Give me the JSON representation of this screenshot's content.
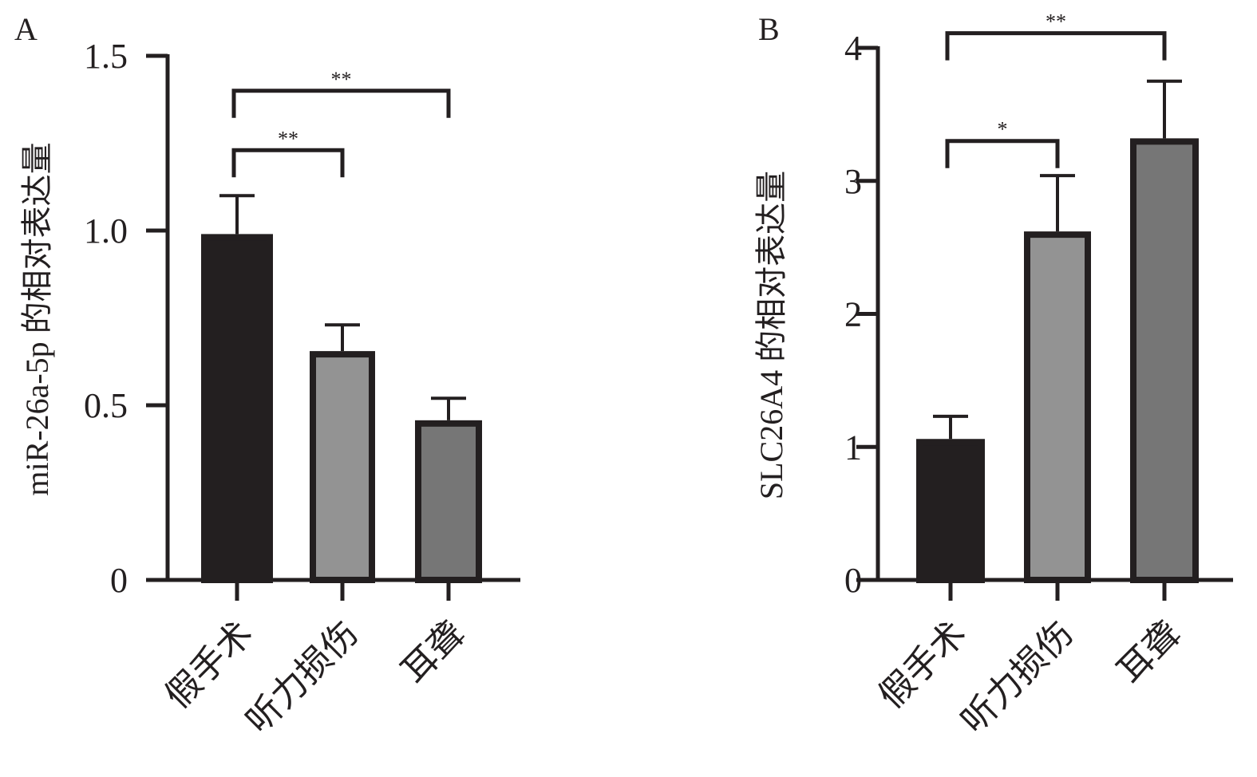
{
  "chart_data": [
    {
      "type": "bar",
      "panel_label": "A",
      "title": "",
      "xlabel": "",
      "ylabel": "miR-26a-5p 的相对表达量",
      "categories": [
        "假手术",
        "听力损伤",
        "耳聋"
      ],
      "values": [
        0.99,
        0.655,
        0.457
      ],
      "error_upper": [
        1.1,
        0.73,
        0.52
      ],
      "ylim": [
        0,
        1.5
      ],
      "yticks": [
        "0",
        "0.5",
        "1.0",
        "1.5"
      ],
      "ytick_values": [
        0,
        0.5,
        1.0,
        1.5
      ],
      "colors": [
        "#231f20",
        "#939393",
        "#767676"
      ],
      "grid": false,
      "significance": [
        {
          "from": 0,
          "to": 2,
          "label": "**",
          "level": 1.4
        },
        {
          "from": 0,
          "to": 1,
          "label": "**",
          "level": 1.23
        }
      ]
    },
    {
      "type": "bar",
      "panel_label": "B",
      "title": "",
      "xlabel": "",
      "ylabel": "SLC26A4 的相对表达量",
      "categories": [
        "假手术",
        "听力损伤",
        "耳聋"
      ],
      "values": [
        1.06,
        2.62,
        3.32
      ],
      "error_upper": [
        1.23,
        3.04,
        3.75
      ],
      "ylim": [
        0,
        4
      ],
      "yticks": [
        "0",
        "1",
        "2",
        "3",
        "4"
      ],
      "ytick_values": [
        0,
        1,
        2,
        3,
        4
      ],
      "colors": [
        "#231f20",
        "#939393",
        "#767676"
      ],
      "grid": false,
      "significance": [
        {
          "from": 0,
          "to": 2,
          "label": "**",
          "level": 4.11
        },
        {
          "from": 0,
          "to": 1,
          "label": "*",
          "level": 3.3
        }
      ]
    }
  ]
}
